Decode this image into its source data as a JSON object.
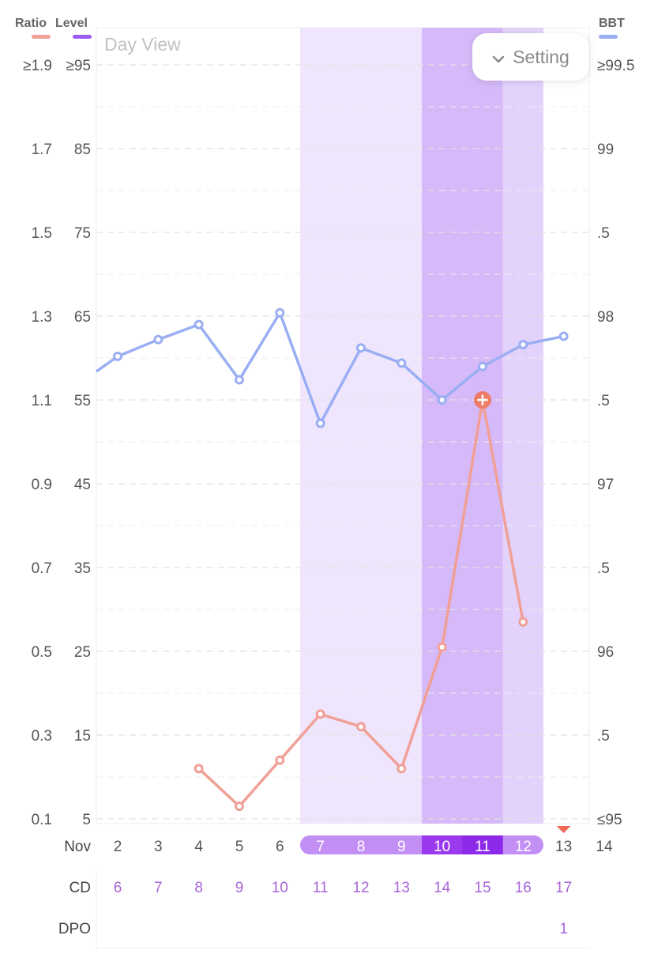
{
  "header": {
    "ratio_label": "Ratio",
    "level_label": "Level",
    "bbt_label": "BBT",
    "day_view_label": "Day View",
    "setting_label": "Setting"
  },
  "colors": {
    "ratio": "#f0a096",
    "ratio_highlight": "#ef7c67",
    "level": "#9b5cf0",
    "bbt": "#9aaef3",
    "band_light": "#efe6fd",
    "band_dark": "#d5b9f8",
    "band_mid": "#e3d2fb",
    "pill_light": "#c48ff5",
    "pill_dark": "#9a39ee",
    "pill_darkest": "#8d2ae9",
    "purple_text": "#a766d8",
    "grid": "#e2e2e2",
    "axis_text": "#555555",
    "marker": "#ee6a55"
  },
  "chart_data": {
    "type": "line",
    "axes": {
      "ratio_ticks": [
        "≥1.9",
        "1.7",
        "1.5",
        "1.3",
        "1.1",
        "0.9",
        "0.7",
        "0.5",
        "0.3",
        "0.1"
      ],
      "level_ticks": [
        "≥95",
        "85",
        "75",
        "65",
        "55",
        "45",
        "35",
        "25",
        "15",
        "5"
      ],
      "bbt_ticks": [
        "≥99.5",
        "99",
        ".5",
        "98",
        ".5",
        "97",
        ".5",
        "96",
        ".5",
        "≤95"
      ],
      "ratio_range": [
        0.1,
        1.9
      ],
      "bbt_range": [
        95,
        99.5
      ]
    },
    "rows": {
      "month_label": "Nov",
      "cd_label": "CD",
      "dpo_label": "DPO"
    },
    "days": [
      "2",
      "3",
      "4",
      "5",
      "6",
      "7",
      "8",
      "9",
      "10",
      "11",
      "12",
      "13",
      "14"
    ],
    "cd": [
      "6",
      "7",
      "8",
      "9",
      "10",
      "11",
      "12",
      "13",
      "14",
      "15",
      "16",
      "17",
      ""
    ],
    "dpo": [
      "",
      "",
      "",
      "",
      "",
      "",
      "",
      "",
      "",
      "",
      "",
      "1",
      ""
    ],
    "fertile_days": [
      "7",
      "8",
      "9",
      "10",
      "11",
      "12"
    ],
    "peak_days": [
      "10",
      "11"
    ],
    "marker_day": "13",
    "series": [
      {
        "name": "Ratio",
        "axis": "ratio",
        "x": [
          "4",
          "5",
          "6",
          "7",
          "8",
          "9",
          "10",
          "11",
          "12"
        ],
        "values": [
          0.22,
          0.13,
          0.24,
          0.35,
          0.32,
          0.22,
          0.51,
          1.1,
          0.57
        ],
        "peak_day": "11"
      },
      {
        "name": "BBT",
        "axis": "bbt",
        "start_value": 97.67,
        "x": [
          "2",
          "3",
          "4",
          "5",
          "6",
          "7",
          "8",
          "9",
          "10",
          "11",
          "12",
          "13"
        ],
        "values": [
          97.76,
          97.86,
          97.95,
          97.62,
          98.02,
          97.36,
          97.81,
          97.72,
          97.5,
          97.7,
          97.83,
          97.88
        ]
      }
    ]
  }
}
